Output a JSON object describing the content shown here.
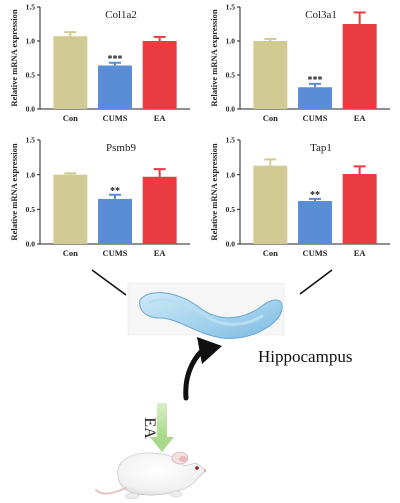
{
  "chart_data": [
    {
      "type": "bar",
      "title": "Col1a2",
      "ylabel": "Relative mRNA expression",
      "categories": [
        "Con",
        "CUMS",
        "EA"
      ],
      "values": [
        1.07,
        0.64,
        1.0
      ],
      "errors": [
        0.06,
        0.04,
        0.06
      ],
      "annotations": [
        "",
        "***",
        ""
      ],
      "yticks": [
        "0.0",
        "0.5",
        "1.0",
        "1.5"
      ],
      "ylim": [
        0,
        1.5
      ],
      "colors": [
        "#d1cb93",
        "#5b8dd6",
        "#ea3b40"
      ]
    },
    {
      "type": "bar",
      "title": "Col3a1",
      "ylabel": "Relative mRNA expression",
      "categories": [
        "Con",
        "CUMS",
        "EA"
      ],
      "values": [
        1.0,
        0.32,
        1.25
      ],
      "errors": [
        0.03,
        0.05,
        0.17
      ],
      "annotations": [
        "",
        "***",
        ""
      ],
      "yticks": [
        "0.0",
        "0.5",
        "1.0",
        "1.5"
      ],
      "ylim": [
        0,
        1.5
      ],
      "colors": [
        "#d1cb93",
        "#5b8dd6",
        "#ea3b40"
      ]
    },
    {
      "type": "bar",
      "title": "Psmb9",
      "ylabel": "Relative mRNA expression",
      "categories": [
        "Con",
        "CUMS",
        "EA"
      ],
      "values": [
        1.0,
        0.65,
        0.97
      ],
      "errors": [
        0.02,
        0.06,
        0.11
      ],
      "annotations": [
        "",
        "**",
        ""
      ],
      "yticks": [
        "0.0",
        "0.5",
        "1.0",
        "1.5"
      ],
      "ylim": [
        0,
        1.5
      ],
      "colors": [
        "#d1cb93",
        "#5b8dd6",
        "#ea3b40"
      ]
    },
    {
      "type": "bar",
      "title": "Tap1",
      "ylabel": "Relative mRNA expression",
      "categories": [
        "Con",
        "CUMS",
        "EA"
      ],
      "values": [
        1.13,
        0.62,
        1.01
      ],
      "errors": [
        0.09,
        0.03,
        0.11
      ],
      "annotations": [
        "",
        "**",
        ""
      ],
      "yticks": [
        "0.0",
        "0.5",
        "1.0",
        "1.5"
      ],
      "ylim": [
        0,
        1.5
      ],
      "colors": [
        "#d1cb93",
        "#5b8dd6",
        "#ea3b40"
      ]
    }
  ],
  "illustration": {
    "region_label": "Hippocampus",
    "treatment_label": "EA",
    "hippocampus_icon": "hippocampus-illustration",
    "mouse_icon": "mouse-illustration"
  }
}
